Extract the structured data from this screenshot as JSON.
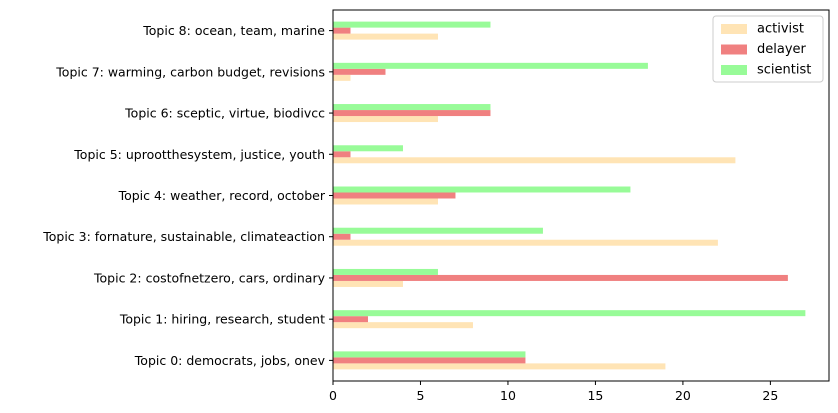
{
  "chart_data": {
    "type": "bar",
    "orientation": "horizontal",
    "categories": [
      "Topic 0: democrats, jobs, onev",
      "Topic 1: hiring, research, student",
      "Topic 2: costofnetzero, cars, ordinary",
      "Topic 3: fornature, sustainable, climateaction",
      "Topic 4: weather, record, october",
      "Topic 5: uprootthesystem, justice, youth",
      "Topic 6: sceptic, virtue, biodivcc",
      "Topic 7: warming, carbon budget, revisions",
      "Topic 8: ocean, team, marine"
    ],
    "series": [
      {
        "name": "activist",
        "color": "#FFE4B5",
        "values": [
          19,
          8,
          4,
          22,
          6,
          23,
          6,
          1,
          6
        ]
      },
      {
        "name": "delayer",
        "color": "#F08080",
        "values": [
          11,
          2,
          26,
          1,
          7,
          1,
          9,
          3,
          1
        ]
      },
      {
        "name": "scientist",
        "color": "#98FB98",
        "values": [
          11,
          27,
          6,
          12,
          17,
          4,
          9,
          18,
          9
        ]
      }
    ],
    "xticks": [
      0,
      5,
      10,
      15,
      20,
      25
    ],
    "xlim": [
      0,
      28.35
    ],
    "title": "",
    "xlabel": "",
    "ylabel": "",
    "grid": false,
    "legend_position": "top-right"
  }
}
